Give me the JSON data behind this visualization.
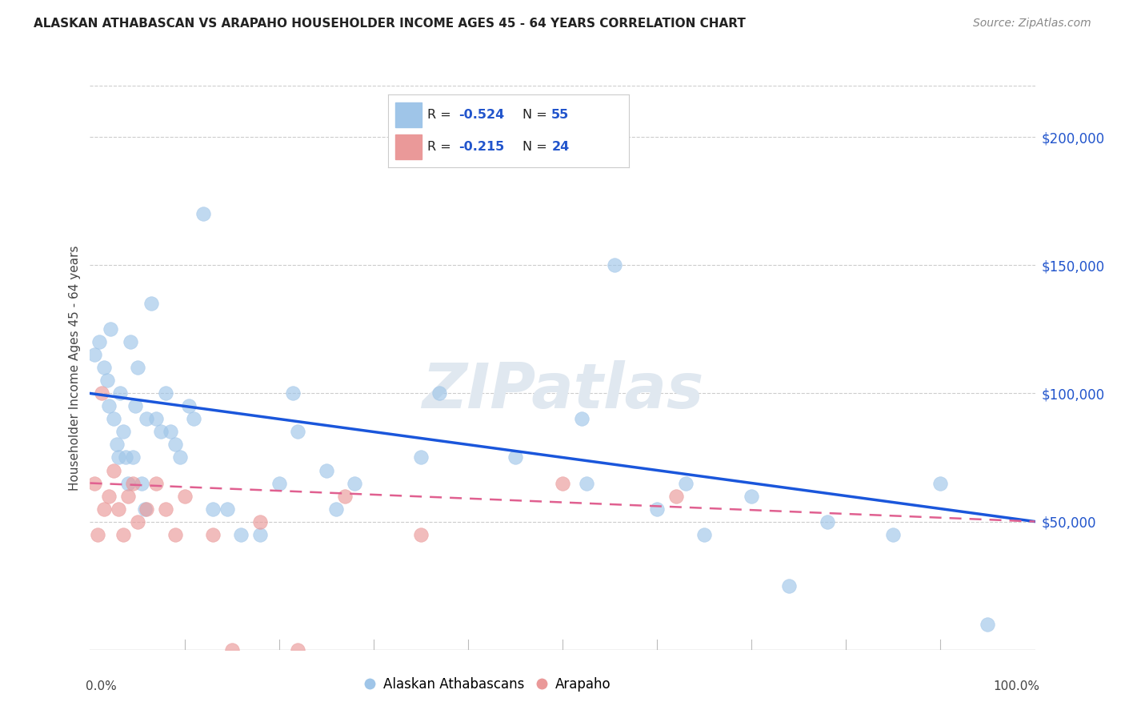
{
  "title": "ALASKAN ATHABASCAN VS ARAPAHO HOUSEHOLDER INCOME AGES 45 - 64 YEARS CORRELATION CHART",
  "source": "Source: ZipAtlas.com",
  "ylabel": "Householder Income Ages 45 - 64 years",
  "y_tick_labels": [
    "$50,000",
    "$100,000",
    "$150,000",
    "$200,000"
  ],
  "y_tick_values": [
    50000,
    100000,
    150000,
    200000
  ],
  "y_right_color": "#2255cc",
  "blue_color": "#9fc5e8",
  "pink_color": "#ea9999",
  "blue_line_color": "#1a56db",
  "pink_line_color": "#e06090",
  "blue_r": -0.524,
  "pink_r": -0.215,
  "blue_n": 55,
  "pink_n": 24,
  "xlim": [
    0,
    1.0
  ],
  "ylim": [
    0,
    220000
  ],
  "blue_x": [
    0.005,
    0.01,
    0.015,
    0.018,
    0.02,
    0.022,
    0.025,
    0.028,
    0.03,
    0.032,
    0.035,
    0.038,
    0.04,
    0.043,
    0.045,
    0.048,
    0.05,
    0.055,
    0.058,
    0.06,
    0.065,
    0.07,
    0.075,
    0.08,
    0.085,
    0.09,
    0.095,
    0.105,
    0.11,
    0.12,
    0.13,
    0.145,
    0.16,
    0.18,
    0.2,
    0.215,
    0.22,
    0.25,
    0.26,
    0.28,
    0.35,
    0.37,
    0.45,
    0.52,
    0.525,
    0.555,
    0.6,
    0.63,
    0.65,
    0.7,
    0.74,
    0.78,
    0.85,
    0.9,
    0.95
  ],
  "blue_y": [
    115000,
    120000,
    110000,
    105000,
    95000,
    125000,
    90000,
    80000,
    75000,
    100000,
    85000,
    75000,
    65000,
    120000,
    75000,
    95000,
    110000,
    65000,
    55000,
    90000,
    135000,
    90000,
    85000,
    100000,
    85000,
    80000,
    75000,
    95000,
    90000,
    170000,
    55000,
    55000,
    45000,
    45000,
    65000,
    100000,
    85000,
    70000,
    55000,
    65000,
    75000,
    100000,
    75000,
    90000,
    65000,
    150000,
    55000,
    65000,
    45000,
    60000,
    25000,
    50000,
    45000,
    65000,
    10000
  ],
  "pink_x": [
    0.005,
    0.008,
    0.012,
    0.015,
    0.02,
    0.025,
    0.03,
    0.035,
    0.04,
    0.045,
    0.05,
    0.06,
    0.07,
    0.08,
    0.09,
    0.1,
    0.13,
    0.15,
    0.18,
    0.22,
    0.27,
    0.35,
    0.5,
    0.62
  ],
  "pink_y": [
    65000,
    45000,
    100000,
    55000,
    60000,
    70000,
    55000,
    45000,
    60000,
    65000,
    50000,
    55000,
    65000,
    55000,
    45000,
    60000,
    45000,
    0,
    50000,
    0,
    60000,
    45000,
    65000,
    60000
  ]
}
